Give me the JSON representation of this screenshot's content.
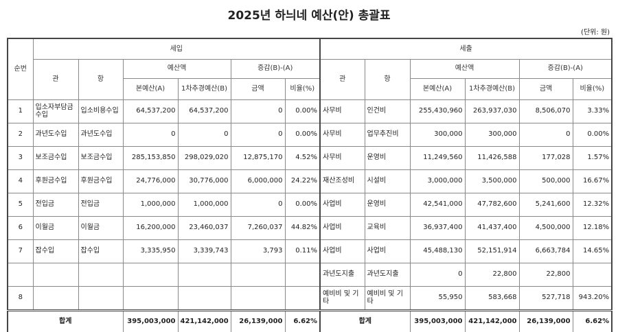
{
  "header": {
    "title": "2025년 하늬네 예산(안) 총괄표",
    "unit": "(단위: 원)"
  },
  "table": {
    "columns": {
      "seq": "순번",
      "revenue": "세입",
      "expenditure": "세출",
      "gwan": "관",
      "hang": "항",
      "budget": "예산액",
      "change": "증감(B)-(A)",
      "original": "본예산(A)",
      "supplementary": "1차추경예산(B)",
      "amount": "금액",
      "ratio": "비율(%)"
    },
    "rows": [
      [
        "1",
        "입소자부담금수입",
        "입소비용수입",
        "64,537,200",
        "64,537,200",
        "0",
        "0.00%",
        "사무비",
        "인건비",
        "255,430,960",
        "263,937,030",
        "8,506,070",
        "3.33%"
      ],
      [
        "2",
        "과년도수입",
        "과년도수입",
        "0",
        "0",
        "0",
        "0.00%",
        "사무비",
        "업무추진비",
        "300,000",
        "300,000",
        "0",
        "0.00%"
      ],
      [
        "3",
        "보조금수입",
        "보조금수입",
        "285,153,850",
        "298,029,020",
        "12,875,170",
        "4.52%",
        "사무비",
        "운영비",
        "11,249,560",
        "11,426,588",
        "177,028",
        "1.57%"
      ],
      [
        "4",
        "후원금수입",
        "후원금수입",
        "24,776,000",
        "30,776,000",
        "6,000,000",
        "24.22%",
        "재산조성비",
        "시설비",
        "3,000,000",
        "3,500,000",
        "500,000",
        "16.67%"
      ],
      [
        "5",
        "전입금",
        "전입금",
        "1,000,000",
        "1,000,000",
        "0",
        "0.00%",
        "사업비",
        "운영비",
        "42,541,000",
        "47,782,600",
        "5,241,600",
        "12.32%"
      ],
      [
        "6",
        "이월금",
        "이월금",
        "16,200,000",
        "23,460,037",
        "7,260,037",
        "44.82%",
        "사업비",
        "교육비",
        "36,937,400",
        "41,437,400",
        "4,500,000",
        "12.18%"
      ],
      [
        "7",
        "잡수입",
        "잡수입",
        "3,335,950",
        "3,339,743",
        "3,793",
        "0.11%",
        "사업비",
        "사업비",
        "45,488,130",
        "52,151,914",
        "6,663,784",
        "14.65%"
      ],
      [
        null,
        null,
        null,
        null,
        null,
        null,
        null,
        "과년도지출",
        "과년도지출",
        "0",
        "22,800",
        "22,800",
        null
      ],
      [
        "8",
        null,
        null,
        null,
        null,
        null,
        null,
        "예비비 및 기타",
        "예비비 및 기타",
        "55,950",
        "583,668",
        "527,718",
        "943.20%"
      ]
    ],
    "total": {
      "label": "합계",
      "values": [
        "395,003,000",
        "421,142,000",
        "26,139,000",
        "6.62%",
        "395,003,000",
        "421,142,000",
        "26,139,000",
        "6.62%"
      ]
    }
  }
}
